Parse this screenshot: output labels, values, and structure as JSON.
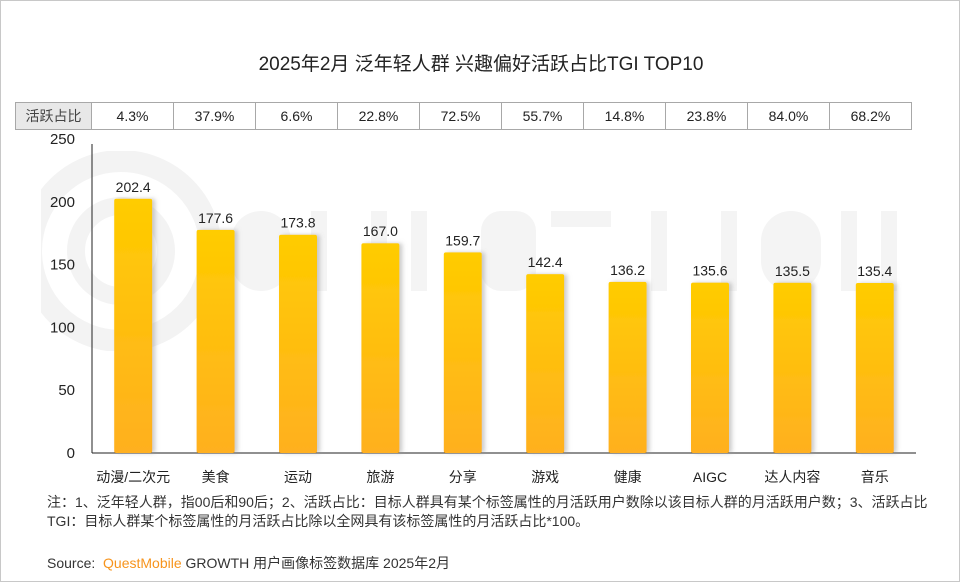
{
  "title": "2025年2月 泛年轻人群 兴趣偏好活跃占比TGI TOP10",
  "table": {
    "header": "活跃占比",
    "values": [
      "4.3%",
      "37.9%",
      "6.6%",
      "22.8%",
      "72.5%",
      "55.7%",
      "14.8%",
      "23.8%",
      "84.0%",
      "68.2%"
    ]
  },
  "chart_data": {
    "type": "bar",
    "title": "2025年2月 泛年轻人群 兴趣偏好活跃占比TGI TOP10",
    "categories": [
      "动漫/二次元",
      "美食",
      "运动",
      "旅游",
      "分享",
      "游戏",
      "健康",
      "AIGC",
      "达人内容",
      "音乐"
    ],
    "values": [
      202.4,
      177.6,
      173.8,
      167.0,
      159.7,
      142.4,
      136.2,
      135.6,
      135.5,
      135.4
    ],
    "value_labels": [
      "202.4",
      "177.6",
      "173.8",
      "167.0",
      "159.7",
      "142.4",
      "136.2",
      "135.6",
      "135.5",
      "135.4"
    ],
    "ylim": [
      0,
      250
    ],
    "yticks": [
      "0",
      "50",
      "100",
      "150",
      "200",
      "250"
    ],
    "grid": false,
    "colors": {
      "bar_top": "#ffcc00",
      "bar_bottom": "#ffb020"
    }
  },
  "notes": "注：1、泛年轻人群，指00后和90后；2、活跃占比：目标人群具有某个标签属性的月活跃用户数除以该目标人群的月活跃用户数；3、活跃占比TGI：目标人群某个标签属性的月活跃占比除以全网具有该标签属性的月活跃占比*100。",
  "source": {
    "label": "Source:",
    "brand": "QuestMobile",
    "rest": "GROWTH 用户画像标签数据库 2025年2月"
  },
  "watermark": "QUEST MOBILE"
}
